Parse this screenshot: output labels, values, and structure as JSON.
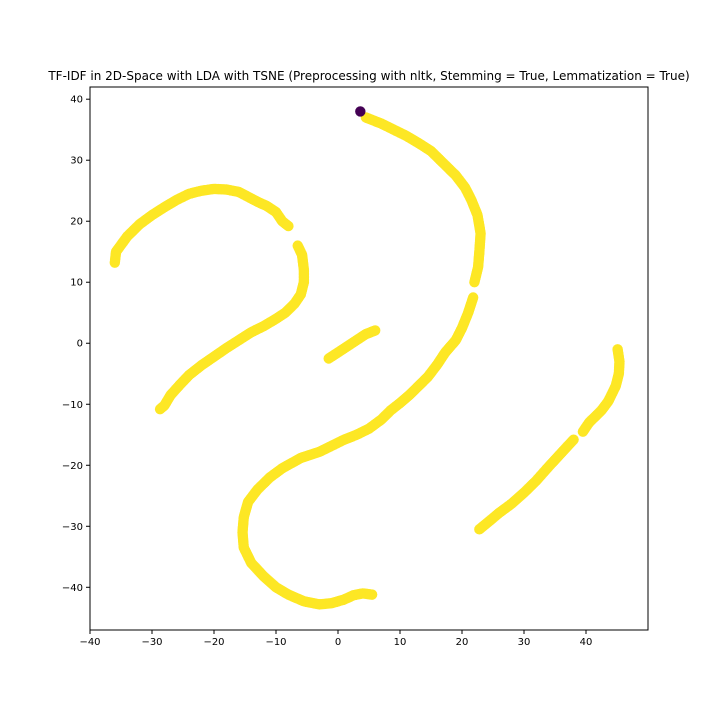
{
  "chart_data": {
    "type": "scatter",
    "title": "TF-IDF in 2D-Space with LDA with TSNE (Preprocessing with nltk, Stemming = True, Lemmatization = True)",
    "xlabel": "",
    "ylabel": "",
    "xlim": [
      -40,
      50
    ],
    "ylim": [
      -47,
      42
    ],
    "xticks": [
      -40,
      -30,
      -20,
      -10,
      0,
      10,
      20,
      30,
      40
    ],
    "yticks": [
      -40,
      -30,
      -20,
      -10,
      0,
      10,
      20,
      30,
      40
    ],
    "grid": false,
    "legend": "none",
    "colors": {
      "yellow_class": "#fde725",
      "purple_class": "#440154"
    },
    "series": [
      {
        "color": "#fde725",
        "clusters": [
          {
            "points": [
              [
                -36,
                13.2
              ],
              [
                -35.8,
                15
              ],
              [
                -34,
                17.5
              ],
              [
                -32,
                19.5
              ],
              [
                -30,
                21
              ],
              [
                -28,
                22.3
              ],
              [
                -26,
                23.5
              ],
              [
                -24,
                24.5
              ],
              [
                -22,
                25
              ],
              [
                -20,
                25.3
              ],
              [
                -18,
                25.2
              ],
              [
                -16,
                24.8
              ],
              [
                -14.5,
                24
              ],
              [
                -13,
                23.2
              ],
              [
                -11.5,
                22.5
              ],
              [
                -10,
                21.5
              ],
              [
                -9,
                20
              ],
              [
                -8,
                19.2
              ]
            ]
          },
          {
            "points": [
              [
                -6.5,
                16
              ],
              [
                -5.8,
                14.5
              ],
              [
                -5.5,
                12
              ],
              [
                -5.5,
                10
              ],
              [
                -6,
                8
              ],
              [
                -7,
                6.5
              ],
              [
                -8.5,
                5
              ],
              [
                -10,
                4
              ],
              [
                -12,
                2.8
              ],
              [
                -14,
                1.8
              ],
              [
                -16,
                0.5
              ],
              [
                -18,
                -0.8
              ],
              [
                -20,
                -2.2
              ],
              [
                -22,
                -3.6
              ],
              [
                -24,
                -5.2
              ],
              [
                -25.5,
                -6.8
              ],
              [
                -27,
                -8.5
              ],
              [
                -28,
                -10.2
              ],
              [
                -28.7,
                -10.8
              ]
            ]
          },
          {
            "points": [
              [
                -1.5,
                -2.5
              ],
              [
                0,
                -1.5
              ],
              [
                1.5,
                -0.5
              ],
              [
                3,
                0.5
              ],
              [
                4.5,
                1.5
              ],
              [
                6,
                2.1
              ]
            ]
          },
          {
            "points": [
              [
                4.5,
                37
              ],
              [
                7,
                36
              ],
              [
                9,
                35
              ],
              [
                11,
                34
              ],
              [
                13,
                32.8
              ],
              [
                15,
                31.5
              ],
              [
                17,
                29.5
              ],
              [
                19,
                27.5
              ],
              [
                20.5,
                25.5
              ],
              [
                21.5,
                23.5
              ],
              [
                22.5,
                21
              ],
              [
                23,
                18
              ],
              [
                22.8,
                15
              ],
              [
                22.6,
                12.5
              ],
              [
                22,
                10
              ]
            ]
          },
          {
            "points": [
              [
                21.8,
                7.5
              ],
              [
                21,
                5
              ],
              [
                20,
                2.5
              ],
              [
                19,
                0.5
              ],
              [
                17.3,
                -1.5
              ],
              [
                16,
                -3.5
              ],
              [
                14.5,
                -5.5
              ],
              [
                13,
                -7
              ],
              [
                11.5,
                -8.5
              ],
              [
                10,
                -9.8
              ],
              [
                8.5,
                -11
              ],
              [
                7,
                -12.5
              ],
              [
                5,
                -14
              ],
              [
                3,
                -15
              ],
              [
                1,
                -15.8
              ],
              [
                -1,
                -16.8
              ],
              [
                -3,
                -17.8
              ],
              [
                -6,
                -18.8
              ],
              [
                -9,
                -20.5
              ],
              [
                -11,
                -22
              ],
              [
                -13,
                -24
              ],
              [
                -14.5,
                -26
              ],
              [
                -15.2,
                -28.5
              ],
              [
                -15.4,
                -31
              ],
              [
                -15.2,
                -33.5
              ],
              [
                -14,
                -36
              ],
              [
                -12,
                -38.2
              ],
              [
                -10,
                -40
              ],
              [
                -8,
                -41.2
              ],
              [
                -5.5,
                -42.3
              ],
              [
                -3,
                -42.8
              ],
              [
                -1,
                -42.6
              ],
              [
                1,
                -42
              ],
              [
                2.5,
                -41.3
              ],
              [
                4,
                -41
              ],
              [
                5.5,
                -41.2
              ]
            ]
          },
          {
            "points": [
              [
                45.1,
                -1
              ],
              [
                45.4,
                -3
              ],
              [
                45.3,
                -5
              ],
              [
                44.8,
                -7
              ],
              [
                43.6,
                -9.5
              ],
              [
                42.5,
                -11
              ],
              [
                40.5,
                -13
              ],
              [
                39.5,
                -14.5
              ]
            ]
          },
          {
            "points": [
              [
                38,
                -15.8
              ],
              [
                36,
                -18
              ],
              [
                34,
                -20.2
              ],
              [
                32,
                -22.5
              ],
              [
                30,
                -24.5
              ],
              [
                28,
                -26.3
              ],
              [
                26,
                -27.8
              ],
              [
                24,
                -29.5
              ],
              [
                22.8,
                -30.5
              ]
            ]
          }
        ]
      },
      {
        "color": "#440154",
        "points": [
          [
            3.6,
            38
          ]
        ]
      }
    ]
  }
}
